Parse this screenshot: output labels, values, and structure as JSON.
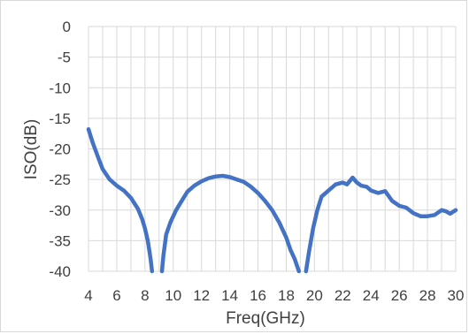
{
  "chart_data": {
    "type": "line",
    "title": "",
    "xlabel": "Freq(GHz)",
    "ylabel": "ISO(dB)",
    "xlim": [
      4,
      30
    ],
    "ylim": [
      -40,
      0
    ],
    "x_ticks": [
      "4",
      "6",
      "8",
      "10",
      "12",
      "14",
      "16",
      "18",
      "20",
      "22",
      "24",
      "26",
      "28",
      "30"
    ],
    "y_ticks": [
      "0",
      "-5",
      "-10",
      "-15",
      "-20",
      "-25",
      "-30",
      "-35",
      "-40"
    ],
    "grid": true,
    "legend": "none",
    "series_color": "#4472c4",
    "grid_color": "#d9d9d9",
    "series": [
      {
        "segments": [
          [
            [
              4.0,
              -16.8
            ],
            [
              4.3,
              -19.0
            ],
            [
              4.7,
              -21.5
            ],
            [
              5.0,
              -23.3
            ],
            [
              5.5,
              -25.0
            ],
            [
              6.0,
              -26.0
            ],
            [
              6.5,
              -26.8
            ],
            [
              7.0,
              -28.0
            ],
            [
              7.5,
              -29.8
            ],
            [
              7.8,
              -31.5
            ],
            [
              8.0,
              -33.0
            ],
            [
              8.2,
              -35.0
            ],
            [
              8.4,
              -38.0
            ],
            [
              8.5,
              -40.0
            ]
          ],
          [
            [
              9.2,
              -40.0
            ],
            [
              9.3,
              -37.5
            ],
            [
              9.5,
              -34.0
            ],
            [
              9.8,
              -32.0
            ],
            [
              10.2,
              -30.0
            ],
            [
              10.6,
              -28.5
            ],
            [
              11.0,
              -27.0
            ],
            [
              11.5,
              -26.0
            ],
            [
              12.0,
              -25.3
            ],
            [
              12.5,
              -24.8
            ],
            [
              13.0,
              -24.5
            ],
            [
              13.5,
              -24.4
            ],
            [
              14.0,
              -24.6
            ],
            [
              14.5,
              -25.0
            ],
            [
              15.0,
              -25.4
            ],
            [
              15.5,
              -26.2
            ],
            [
              16.0,
              -27.2
            ],
            [
              16.5,
              -28.5
            ],
            [
              17.0,
              -30.0
            ],
            [
              17.5,
              -32.0
            ],
            [
              18.0,
              -34.5
            ],
            [
              18.3,
              -36.5
            ],
            [
              18.6,
              -38.0
            ],
            [
              18.9,
              -40.0
            ]
          ],
          [
            [
              19.4,
              -40.0
            ],
            [
              19.6,
              -37.0
            ],
            [
              19.9,
              -33.0
            ],
            [
              20.2,
              -30.0
            ],
            [
              20.5,
              -27.8
            ],
            [
              21.0,
              -26.8
            ],
            [
              21.5,
              -25.8
            ],
            [
              22.0,
              -25.5
            ],
            [
              22.3,
              -25.8
            ],
            [
              22.7,
              -24.7
            ],
            [
              23.0,
              -25.5
            ],
            [
              23.3,
              -26.0
            ],
            [
              23.7,
              -26.2
            ],
            [
              24.0,
              -26.8
            ],
            [
              24.5,
              -27.2
            ],
            [
              25.0,
              -26.9
            ],
            [
              25.5,
              -28.5
            ],
            [
              26.0,
              -29.3
            ],
            [
              26.5,
              -29.6
            ],
            [
              27.0,
              -30.5
            ],
            [
              27.5,
              -31.0
            ],
            [
              28.0,
              -31.0
            ],
            [
              28.5,
              -30.8
            ],
            [
              29.0,
              -30.0
            ],
            [
              29.3,
              -30.2
            ],
            [
              29.6,
              -30.6
            ],
            [
              30.0,
              -30.0
            ]
          ]
        ]
      }
    ]
  }
}
